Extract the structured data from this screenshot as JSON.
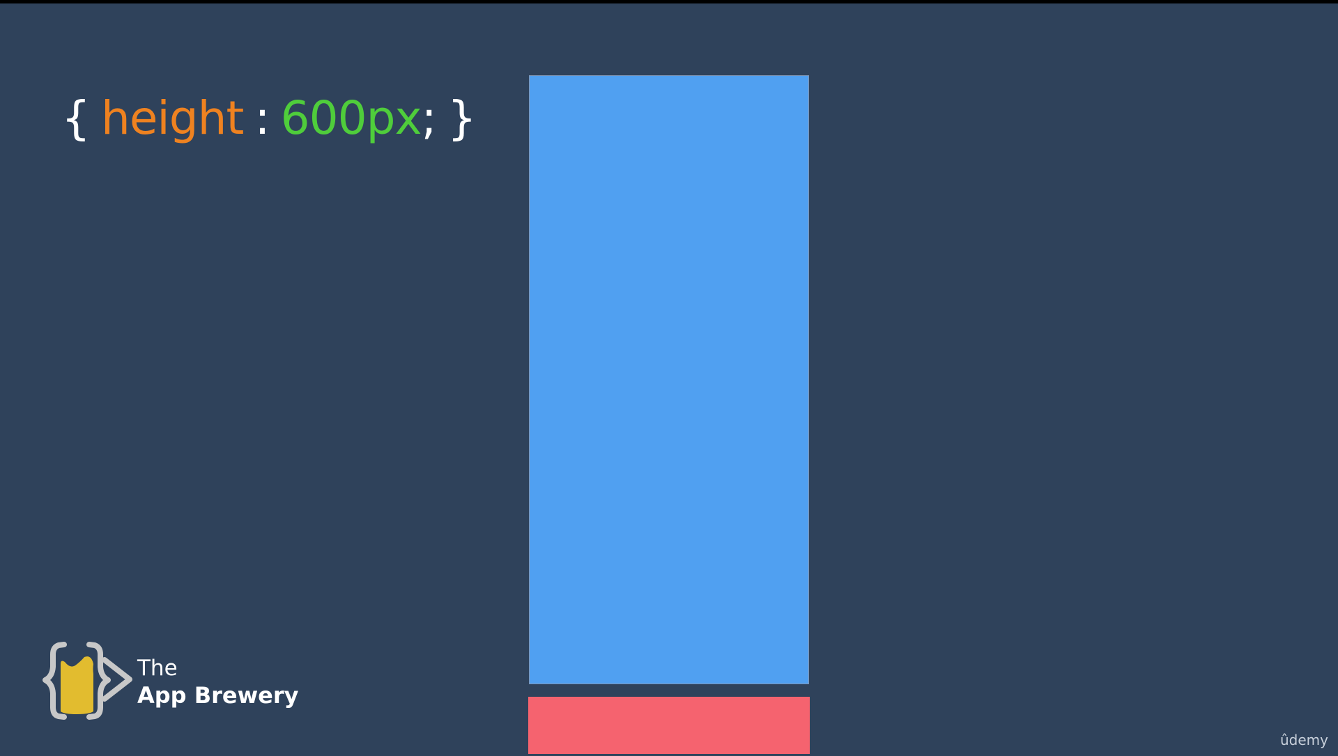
{
  "snippet": {
    "open_brace": "{",
    "property": "height",
    "colon": ":",
    "value": "600px",
    "semicolon": ";",
    "close_brace": "}"
  },
  "colors": {
    "background": "#2f425b",
    "property": "#ef8220",
    "value": "#4fcd3b",
    "blue_box": "#50a0f1",
    "red_box": "#f5636f",
    "logo_cup": "#e2bc2f",
    "logo_outline": "#c8c8c8"
  },
  "icons": {
    "brand": "app-brewery-logo-icon"
  },
  "brand": {
    "the": "The",
    "name": "App Brewery"
  },
  "watermark": {
    "text": "ûdemy"
  }
}
